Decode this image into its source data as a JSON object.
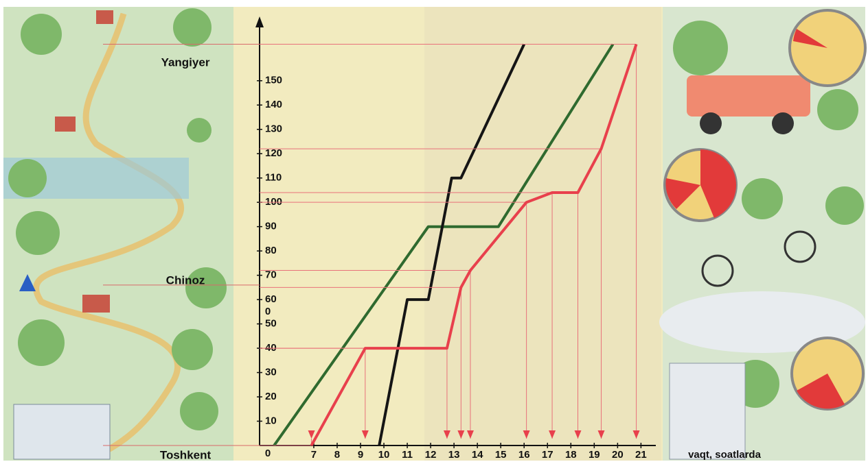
{
  "chart_data": {
    "type": "line",
    "x_label": "vaqt, soatlarda",
    "origin_label": "0",
    "stray_label": "0",
    "xlim": [
      4.68,
      21.4
    ],
    "ylim": [
      0,
      166
    ],
    "xticks": [
      7,
      8,
      9,
      10,
      11,
      12,
      13,
      14,
      15,
      16,
      17,
      18,
      19,
      20,
      21
    ],
    "yticks": [
      10,
      20,
      30,
      40,
      50,
      60,
      70,
      80,
      90,
      100,
      110,
      120,
      130,
      140,
      150
    ],
    "places": [
      {
        "name": "Yangiyer",
        "distance": 165
      },
      {
        "name": "Chinoz",
        "distance": 66
      },
      {
        "name": "Toshkent",
        "distance": 0
      }
    ],
    "series": [
      {
        "color": "#2f6a2f",
        "x": [
          5.3,
          11.9,
          14.9,
          19.8
        ],
        "values": [
          0,
          90,
          90,
          165
        ]
      },
      {
        "color": "#151515",
        "x": [
          9.8,
          11.0,
          11.9,
          12.9,
          13.3,
          16.0
        ],
        "values": [
          0,
          60,
          60,
          110,
          110,
          165
        ]
      },
      {
        "color": "#e8404c",
        "x": [
          6.9,
          9.2,
          12.7,
          13.3,
          13.7,
          16.1,
          17.2,
          18.3,
          19.3,
          20.8
        ],
        "values": [
          0,
          40,
          40,
          65,
          72,
          100,
          104,
          104,
          122,
          165
        ]
      }
    ]
  }
}
